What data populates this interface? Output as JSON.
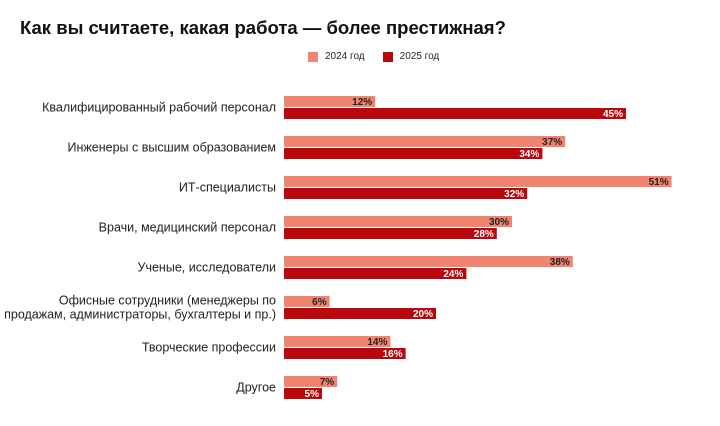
{
  "title": "Как вы считаете, какая работа — более престижная?",
  "colors": {
    "series_2024": "#f08470",
    "series_2025": "#b8080e"
  },
  "legend": {
    "s2024": "2024 год",
    "s2025": "2025 год"
  },
  "chart_data": {
    "type": "bar",
    "orientation": "horizontal",
    "title": "Как вы считаете, какая работа — более престижная?",
    "categories": [
      [
        "Квалифицированный рабочий персонал"
      ],
      [
        "Инженеры с высшим образованием"
      ],
      [
        "ИТ-специалисты"
      ],
      [
        "Врачи, медицинский персонал"
      ],
      [
        "Ученые, исследователи"
      ],
      [
        "Офисные сотрудники (менеджеры по",
        "продажам, администраторы, бухгалтеры и пр.)"
      ],
      [
        "Творческие профессии"
      ],
      [
        "Другое"
      ]
    ],
    "series": [
      {
        "name": "2024 год",
        "values": [
          12,
          37,
          51,
          30,
          38,
          6,
          14,
          7
        ]
      },
      {
        "name": "2025 год",
        "values": [
          45,
          34,
          32,
          28,
          24,
          20,
          16,
          5
        ]
      }
    ],
    "value_suffix": "%",
    "legend_position": "top",
    "grid": false
  }
}
